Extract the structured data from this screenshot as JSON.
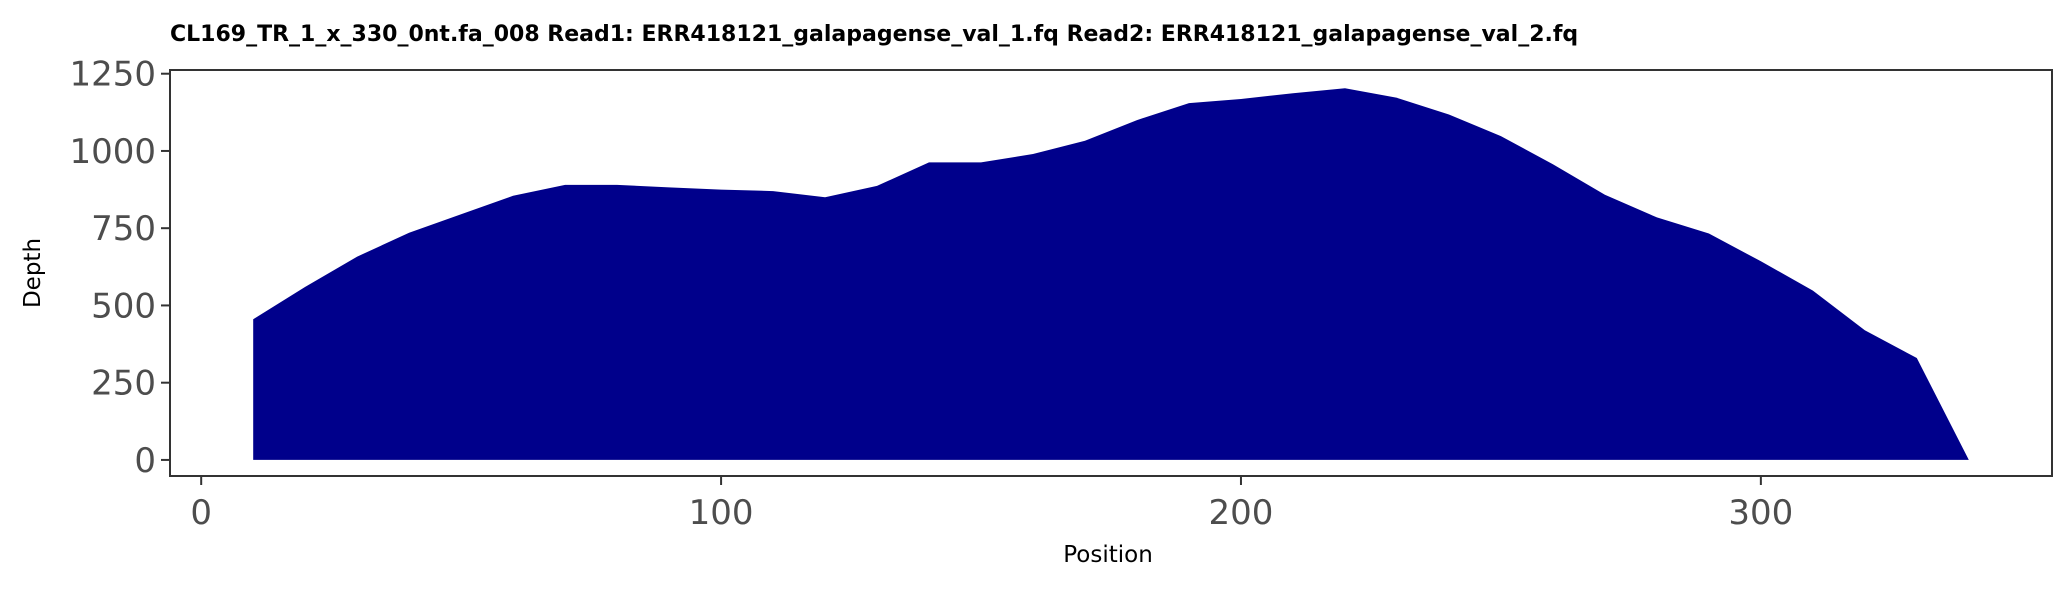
{
  "chart_data": {
    "type": "area",
    "title": "CL169_TR_1_x_330_0nt.fa_008   Read1: ERR418121_galapagense_val_1.fq   Read2: ERR418121_galapagense_val_2.fq",
    "xlabel": "Position",
    "ylabel": "Depth",
    "xlim": [
      -6,
      356
    ],
    "ylim": [
      -52,
      1262
    ],
    "xticks": [
      0,
      100,
      200,
      300
    ],
    "xtick_labels": [
      "0",
      "100",
      "200",
      "300"
    ],
    "yticks": [
      0,
      250,
      500,
      750,
      1000,
      1250
    ],
    "ytick_labels": [
      "0",
      "250",
      "500",
      "750",
      "1000",
      "1250"
    ],
    "fill_color": "#00008b",
    "x": [
      10,
      20,
      30,
      40,
      50,
      60,
      70,
      80,
      90,
      100,
      110,
      120,
      130,
      140,
      150,
      160,
      170,
      180,
      190,
      200,
      210,
      220,
      230,
      240,
      250,
      260,
      270,
      280,
      290,
      300,
      310,
      320,
      330,
      340
    ],
    "y": [
      455,
      560,
      658,
      735,
      795,
      855,
      890,
      890,
      882,
      875,
      870,
      850,
      887,
      963,
      963,
      990,
      1033,
      1100,
      1155,
      1168,
      1187,
      1203,
      1172,
      1118,
      1048,
      957,
      858,
      785,
      733,
      643,
      548,
      420,
      330,
      0
    ]
  }
}
